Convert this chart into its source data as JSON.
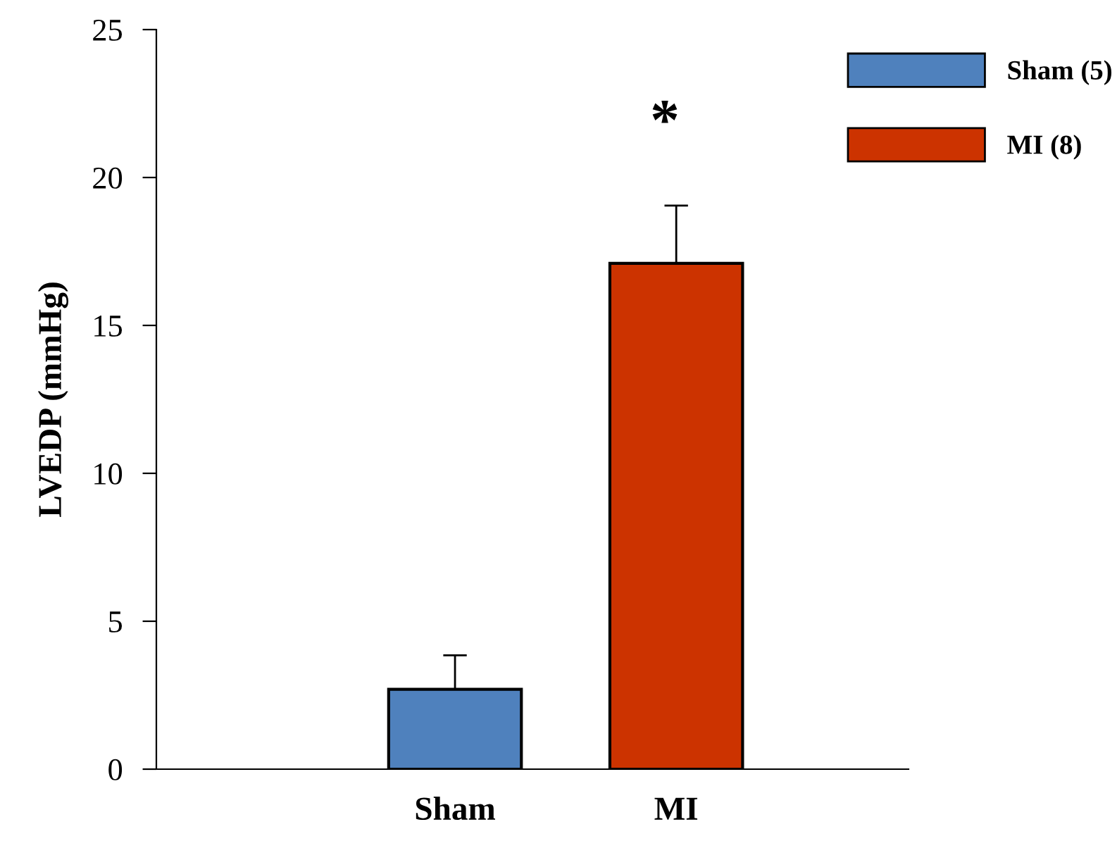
{
  "chart_data": {
    "type": "bar",
    "ylabel": "LVEDP (mmHg)",
    "categories": [
      "Sham",
      "MI"
    ],
    "series": [
      {
        "name": "Sham (5)",
        "color": "#4f81bd",
        "values": [
          2.7,
          null
        ],
        "errors": [
          1.15,
          null
        ]
      },
      {
        "name": "MI (8)",
        "color": "#cc3300",
        "values": [
          null,
          17.1
        ],
        "errors": [
          null,
          1.95
        ]
      }
    ],
    "ylim": [
      0,
      25
    ],
    "yticks": [
      0,
      5,
      10,
      15,
      20,
      25
    ],
    "grid": false,
    "legend": "top right",
    "annotations": [
      "*"
    ]
  }
}
